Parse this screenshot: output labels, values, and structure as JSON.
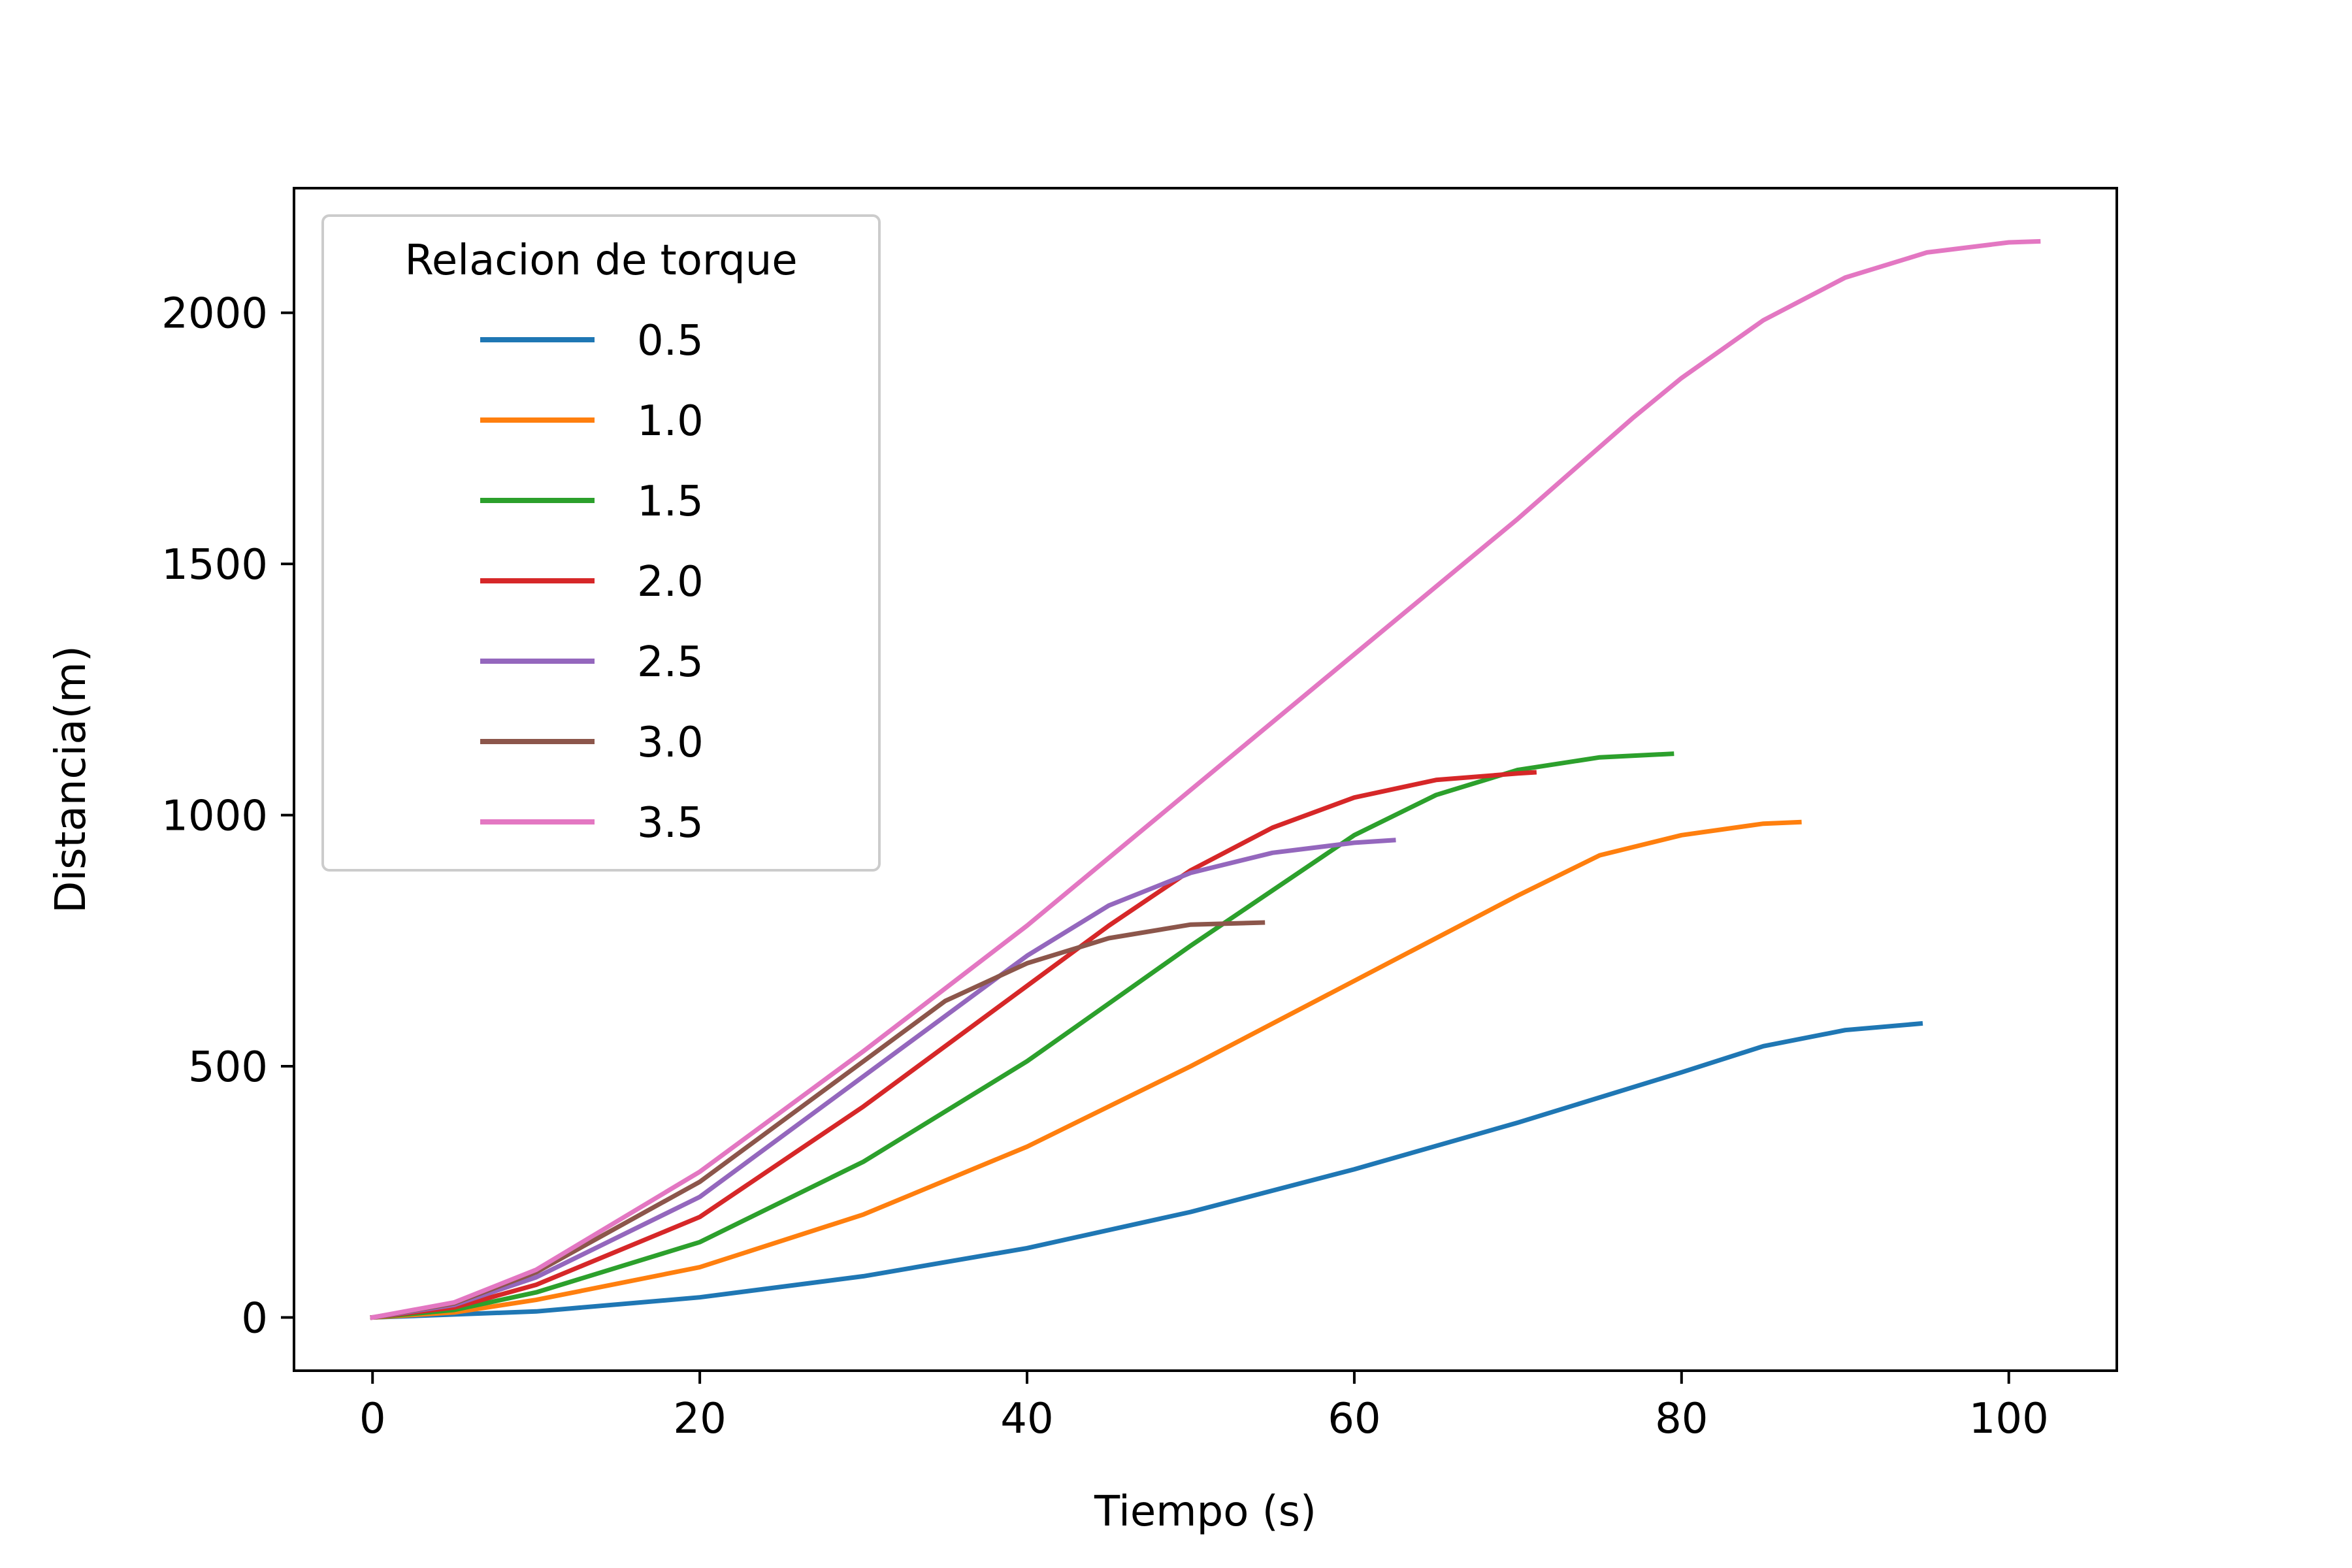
{
  "chart_data": {
    "type": "line",
    "xlabel": "Tiempo (s)",
    "ylabel": "Distancia(m)",
    "xlim": [
      -4.8,
      106.6
    ],
    "ylim": [
      -106,
      2248
    ],
    "xticks": [
      0,
      20,
      40,
      60,
      80,
      100
    ],
    "xtick_labels": [
      "0",
      "20",
      "40",
      "60",
      "80",
      "100"
    ],
    "yticks": [
      0,
      500,
      1000,
      1500,
      2000
    ],
    "ytick_labels": [
      "0",
      "500",
      "1000",
      "1500",
      "2000"
    ],
    "grid": false,
    "legend": {
      "title": "Relacion de torque",
      "position": "top-left"
    },
    "series": [
      {
        "name": "0.5",
        "color": "#1f77b4",
        "x": [
          0,
          10,
          20,
          30,
          40,
          50,
          60,
          70,
          80,
          85,
          90,
          94.6
        ],
        "y": [
          0,
          12,
          40,
          82,
          138,
          210,
          295,
          388,
          488,
          540,
          572,
          585
        ]
      },
      {
        "name": "1.0",
        "color": "#ff7f0e",
        "x": [
          0,
          5,
          10,
          20,
          30,
          40,
          50,
          60,
          70,
          75,
          80,
          85,
          87.2
        ],
        "y": [
          0,
          10,
          35,
          100,
          205,
          340,
          500,
          670,
          840,
          920,
          960,
          983,
          986
        ]
      },
      {
        "name": "1.5",
        "color": "#2ca02c",
        "x": [
          0,
          5,
          10,
          20,
          30,
          40,
          50,
          60,
          65,
          70,
          75,
          79.4
        ],
        "y": [
          0,
          15,
          50,
          150,
          310,
          510,
          740,
          960,
          1040,
          1090,
          1115,
          1122
        ]
      },
      {
        "name": "2.0",
        "color": "#d62728",
        "x": [
          0,
          5,
          10,
          20,
          30,
          40,
          45,
          50,
          55,
          60,
          65,
          70,
          71
        ],
        "y": [
          0,
          20,
          65,
          200,
          420,
          660,
          780,
          890,
          975,
          1035,
          1070,
          1083,
          1085
        ]
      },
      {
        "name": "2.5",
        "color": "#9467bd",
        "x": [
          0,
          5,
          10,
          20,
          30,
          40,
          45,
          50,
          55,
          60,
          62.4
        ],
        "y": [
          0,
          25,
          80,
          240,
          480,
          720,
          820,
          885,
          925,
          945,
          950
        ]
      },
      {
        "name": "3.0",
        "color": "#8c564b",
        "x": [
          0,
          5,
          10,
          20,
          30,
          35,
          40,
          45,
          50,
          54.4
        ],
        "y": [
          0,
          28,
          90,
          270,
          510,
          630,
          705,
          755,
          782,
          786
        ]
      },
      {
        "name": "3.5",
        "color": "#e377c2",
        "x": [
          0,
          5,
          10,
          20,
          30,
          40,
          50,
          60,
          70,
          77,
          80,
          85,
          90,
          95,
          100,
          101.8
        ],
        "y": [
          0,
          30,
          95,
          290,
          530,
          780,
          1050,
          1320,
          1590,
          1790,
          1870,
          1985,
          2070,
          2120,
          2140,
          2142
        ]
      }
    ]
  }
}
